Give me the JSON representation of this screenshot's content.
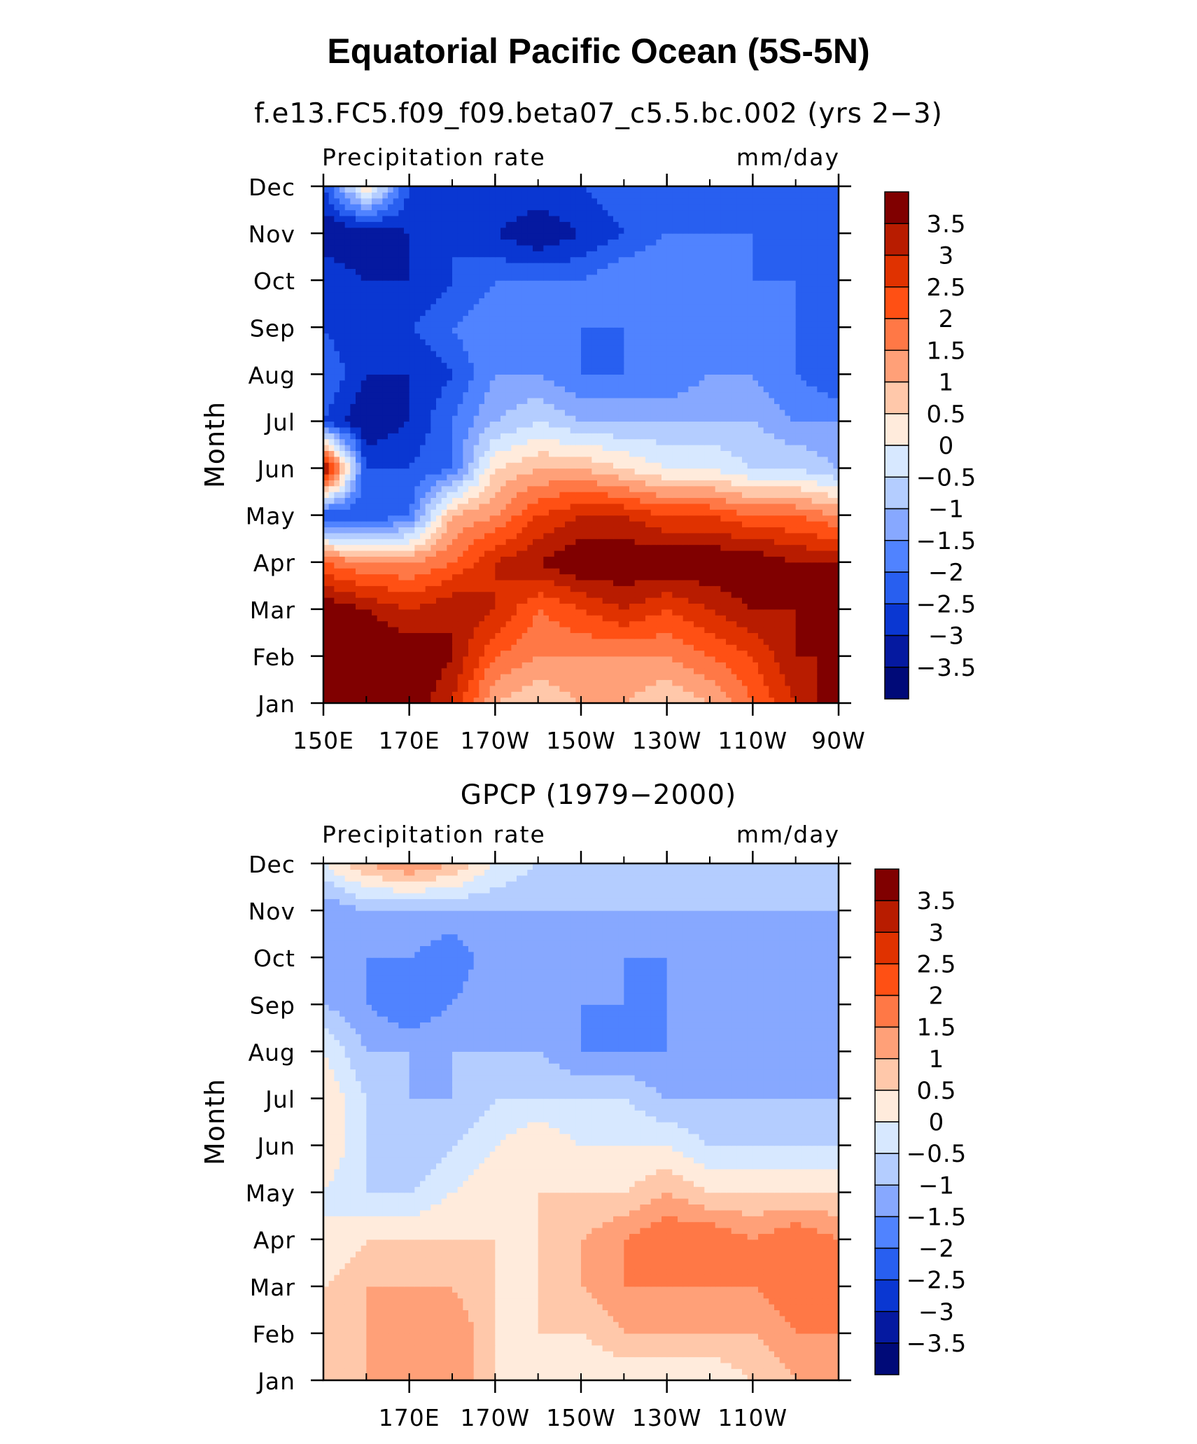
{
  "figure": {
    "title": "Equatorial Pacific Ocean (5S-5N)"
  },
  "colorbar": {
    "labels": [
      "3.5",
      "3",
      "2.5",
      "2",
      "1.5",
      "1",
      "0.5",
      "0",
      "−0.5",
      "−1",
      "−1.5",
      "−2",
      "−2.5",
      "−3",
      "−3.5"
    ],
    "colors": [
      "#800000",
      "#b81c00",
      "#e03200",
      "#ff5014",
      "#ff7846",
      "#ffa078",
      "#ffc8aa",
      "#ffebdc",
      "#d7e8ff",
      "#b4cdff",
      "#87a8ff",
      "#5083ff",
      "#285ff0",
      "#0a37d2",
      "#0519a0",
      "#000a78"
    ]
  },
  "chart_data": [
    {
      "type": "heatmap",
      "title": "f.e13.FC5.f09_f09.beta07_c5.5.bc.002 (yrs 2−3)",
      "left_label": "Precipitation rate",
      "right_label": "mm/day",
      "ylabel": "Month",
      "x_ticks": [
        "150E",
        "170E",
        "170W",
        "150W",
        "130W",
        "110W",
        "90W"
      ],
      "x_tick_values": [
        150,
        170,
        190,
        210,
        230,
        250,
        270
      ],
      "xlim": [
        150,
        270
      ],
      "y_ticks": [
        "Jan",
        "Feb",
        "Mar",
        "Apr",
        "May",
        "Jun",
        "Jul",
        "Aug",
        "Sep",
        "Oct",
        "Nov",
        "Dec"
      ],
      "x": [
        150,
        160,
        170,
        180,
        190,
        200,
        210,
        220,
        230,
        240,
        250,
        260,
        270
      ],
      "z": [
        [
          4.0,
          4.0,
          4.0,
          3.0,
          1.0,
          0.5,
          1.0,
          1.0,
          0.5,
          1.0,
          2.0,
          3.0,
          4.0
        ],
        [
          4.0,
          4.0,
          4.0,
          3.5,
          2.0,
          1.5,
          1.5,
          1.5,
          1.5,
          2.0,
          2.5,
          3.5,
          3.5
        ],
        [
          4.0,
          3.5,
          3.0,
          3.5,
          3.0,
          2.0,
          2.5,
          3.0,
          2.5,
          3.0,
          3.5,
          3.5,
          4.0
        ],
        [
          2.0,
          1.5,
          1.5,
          2.0,
          3.0,
          3.5,
          4.0,
          4.0,
          4.0,
          4.0,
          4.0,
          3.5,
          3.5
        ],
        [
          -2.5,
          -2.5,
          -2.0,
          1.0,
          1.5,
          2.5,
          3.0,
          3.0,
          2.5,
          2.5,
          2.0,
          2.0,
          1.5
        ],
        [
          4.0,
          -2.5,
          -2.5,
          -2.0,
          0.5,
          1.0,
          1.0,
          0.5,
          0.0,
          0.0,
          -0.5,
          -0.5,
          -1.0
        ],
        [
          -2.5,
          -3.5,
          -3.0,
          -2.0,
          -1.0,
          -0.5,
          -1.0,
          -1.0,
          -1.0,
          -1.0,
          -1.0,
          -1.5,
          -1.5
        ],
        [
          -2.0,
          -3.0,
          -3.0,
          -2.5,
          -1.5,
          -1.5,
          -2.0,
          -2.0,
          -2.0,
          -1.5,
          -1.5,
          -2.0,
          -2.5
        ],
        [
          -2.5,
          -3.0,
          -2.5,
          -2.0,
          -1.5,
          -1.5,
          -2.0,
          -2.0,
          -1.5,
          -1.5,
          -1.5,
          -2.0,
          -2.5
        ],
        [
          -2.5,
          -3.0,
          -3.0,
          -2.5,
          -2.0,
          -2.0,
          -2.0,
          -1.5,
          -1.5,
          -1.5,
          -2.0,
          -2.0,
          -2.5
        ],
        [
          -3.5,
          -3.5,
          -3.0,
          -2.5,
          -3.0,
          -3.5,
          -3.0,
          -2.5,
          -2.0,
          -2.0,
          -2.0,
          -2.0,
          -2.5
        ],
        [
          -2.5,
          0.5,
          -2.5,
          -2.5,
          -2.5,
          -2.5,
          -2.5,
          -2.0,
          -2.0,
          -2.0,
          -2.0,
          -2.0,
          -2.0
        ]
      ]
    },
    {
      "type": "heatmap",
      "title": "GPCP (1979−2000)",
      "left_label": "Precipitation rate",
      "right_label": "mm/day",
      "ylabel": "Month",
      "x_ticks": [
        "170E",
        "170W",
        "150W",
        "130W",
        "110W"
      ],
      "x_tick_values": [
        170,
        190,
        210,
        230,
        250
      ],
      "xlim": [
        150,
        270
      ],
      "y_ticks": [
        "Jan",
        "Feb",
        "Mar",
        "Apr",
        "May",
        "Jun",
        "Jul",
        "Aug",
        "Sep",
        "Oct",
        "Nov",
        "Dec"
      ],
      "x": [
        150,
        160,
        170,
        180,
        190,
        200,
        210,
        220,
        230,
        240,
        250,
        260,
        270
      ],
      "z": [
        [
          1.0,
          1.0,
          1.5,
          1.5,
          0.5,
          0.0,
          0.0,
          0.0,
          0.0,
          0.0,
          0.5,
          1.0,
          1.5
        ],
        [
          0.5,
          1.0,
          1.5,
          1.5,
          0.5,
          0.5,
          0.5,
          1.0,
          1.0,
          1.0,
          1.0,
          1.5,
          1.5
        ],
        [
          0.5,
          1.0,
          1.0,
          1.0,
          0.5,
          0.5,
          1.0,
          1.5,
          1.5,
          1.5,
          1.5,
          2.0,
          1.5
        ],
        [
          0.0,
          0.5,
          0.5,
          0.5,
          0.5,
          0.5,
          1.0,
          1.5,
          2.0,
          2.0,
          1.5,
          2.0,
          1.5
        ],
        [
          0.0,
          -0.5,
          -0.5,
          0.0,
          0.5,
          0.5,
          0.5,
          0.5,
          1.0,
          0.5,
          0.5,
          0.5,
          0.5
        ],
        [
          0.5,
          -0.5,
          -1.0,
          -0.5,
          0.0,
          0.5,
          0.0,
          0.0,
          0.0,
          -0.5,
          -0.5,
          -0.5,
          -0.5
        ],
        [
          0.5,
          -0.5,
          -1.0,
          -1.0,
          -0.5,
          -0.5,
          -0.5,
          -0.5,
          -1.0,
          -1.0,
          -1.0,
          -1.0,
          -1.0
        ],
        [
          0.0,
          -1.0,
          -1.0,
          -1.0,
          -1.0,
          -1.0,
          -1.5,
          -1.5,
          -1.5,
          -1.0,
          -1.0,
          -1.5,
          -1.0
        ],
        [
          -1.0,
          -1.5,
          -2.0,
          -1.5,
          -1.0,
          -1.0,
          -1.5,
          -1.5,
          -1.5,
          -1.5,
          -1.0,
          -1.5,
          -1.5
        ],
        [
          -1.0,
          -1.5,
          -1.5,
          -2.0,
          -1.0,
          -1.0,
          -1.0,
          -1.5,
          -1.5,
          -1.0,
          -1.0,
          -1.0,
          -1.5
        ],
        [
          -1.5,
          -1.0,
          -1.0,
          -1.0,
          -1.0,
          -1.0,
          -1.0,
          -1.0,
          -1.0,
          -1.0,
          -1.0,
          -1.0,
          -1.0
        ],
        [
          0.0,
          1.0,
          1.5,
          1.0,
          0.0,
          -0.5,
          -0.5,
          -0.5,
          -0.5,
          -0.5,
          -0.5,
          -0.5,
          -0.5
        ]
      ]
    }
  ]
}
